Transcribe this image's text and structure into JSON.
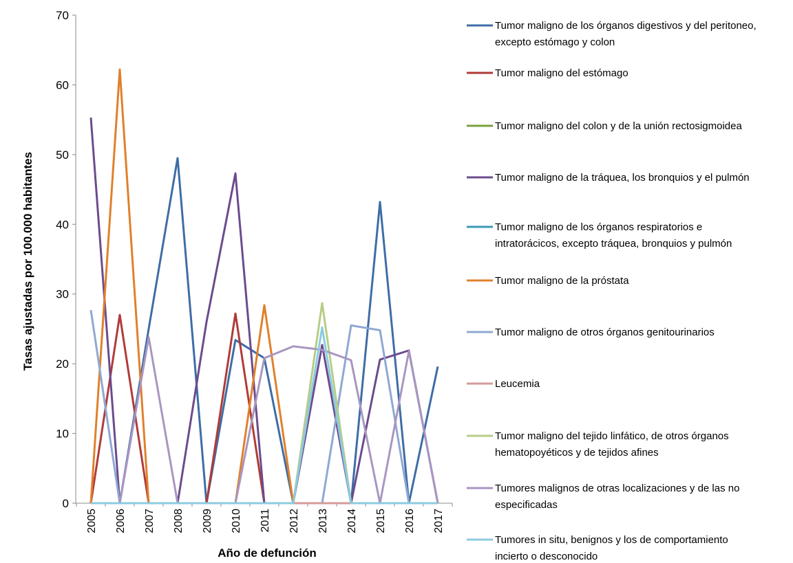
{
  "chart_data": {
    "type": "line",
    "x_label": "Año de defunción",
    "y_label": "Tasas ajustadas por 100.000 habitantes",
    "categories": [
      "2005",
      "2006",
      "2007",
      "2008",
      "2009",
      "2010",
      "2011",
      "2012",
      "2013",
      "2014",
      "2015",
      "2016",
      "2017"
    ],
    "ylim": [
      0,
      70
    ],
    "yticks": [
      0,
      10,
      20,
      30,
      40,
      50,
      60,
      70
    ],
    "grid": false,
    "legend": "right",
    "series": [
      {
        "name": "Tumor maligno de los órganos digestivos y del peritoneo, excepto estómago y colon",
        "color": "#3d6da6",
        "values": [
          0,
          0,
          25,
          49.5,
          0,
          23.4,
          20.8,
          0,
          0,
          0,
          43.2,
          0,
          19.6
        ]
      },
      {
        "name": "Tumor maligno del estómago",
        "color": "#b03b38",
        "values": [
          0,
          27,
          0,
          0,
          0,
          27.2,
          0,
          0,
          0,
          0,
          0,
          0,
          0
        ]
      },
      {
        "name": "Tumor maligno del colon y de la unión rectosigmoidea",
        "color": "#78a13c",
        "values": [
          0,
          0,
          0,
          0,
          0,
          0,
          0,
          0,
          0,
          0,
          0,
          0,
          0
        ]
      },
      {
        "name": "Tumor maligno de la tráquea, los bronquios y el pulmón",
        "color": "#6b4b8d",
        "values": [
          55.3,
          0,
          0,
          0,
          26,
          47.3,
          0,
          0,
          22.7,
          0,
          20.6,
          21.9,
          0
        ]
      },
      {
        "name": "Tumor maligno de los órganos respiratorios e intratorácicos, excepto tráquea, bronquios y pulmón",
        "color": "#3a9ab5",
        "values": [
          0,
          0,
          0,
          0,
          0,
          0,
          0,
          0,
          0,
          0,
          0,
          0,
          0
        ]
      },
      {
        "name": "Tumor maligno de la próstata",
        "color": "#e0802b",
        "values": [
          0,
          62.2,
          0,
          0,
          0,
          0,
          28.4,
          0,
          0,
          0,
          0,
          0,
          0
        ]
      },
      {
        "name": "Tumor maligno de otros órganos genitourinarios",
        "color": "#8fa8d3",
        "values": [
          27.7,
          0,
          0,
          0,
          0,
          0,
          0,
          0,
          0,
          25.5,
          24.8,
          0,
          0
        ]
      },
      {
        "name": "Leucemia",
        "color": "#d49b99",
        "values": [
          0,
          0,
          0,
          0,
          0,
          0,
          0,
          0,
          0,
          0,
          0,
          0,
          0
        ]
      },
      {
        "name": "Tumor maligno del tejido linfático, de otros órganos hematopoyéticos y de tejidos afines",
        "color": "#b6cd86",
        "values": [
          0,
          0,
          0,
          0,
          0,
          0,
          0,
          0,
          28.7,
          0,
          0,
          0,
          0
        ]
      },
      {
        "name": "Tumores malignos de otras localizaciones y de las no especificadas",
        "color": "#a896c0",
        "values": [
          0,
          0,
          23.8,
          0,
          0,
          0,
          20.8,
          22.5,
          22.0,
          20.5,
          0,
          21.8,
          0
        ]
      },
      {
        "name": "Tumores in situ, benignos y los de comportamiento incierto o desconocido",
        "color": "#8ccbe0",
        "values": [
          0,
          0,
          0,
          0,
          0,
          0,
          0,
          0,
          25.2,
          0,
          0,
          0,
          0
        ]
      }
    ]
  }
}
